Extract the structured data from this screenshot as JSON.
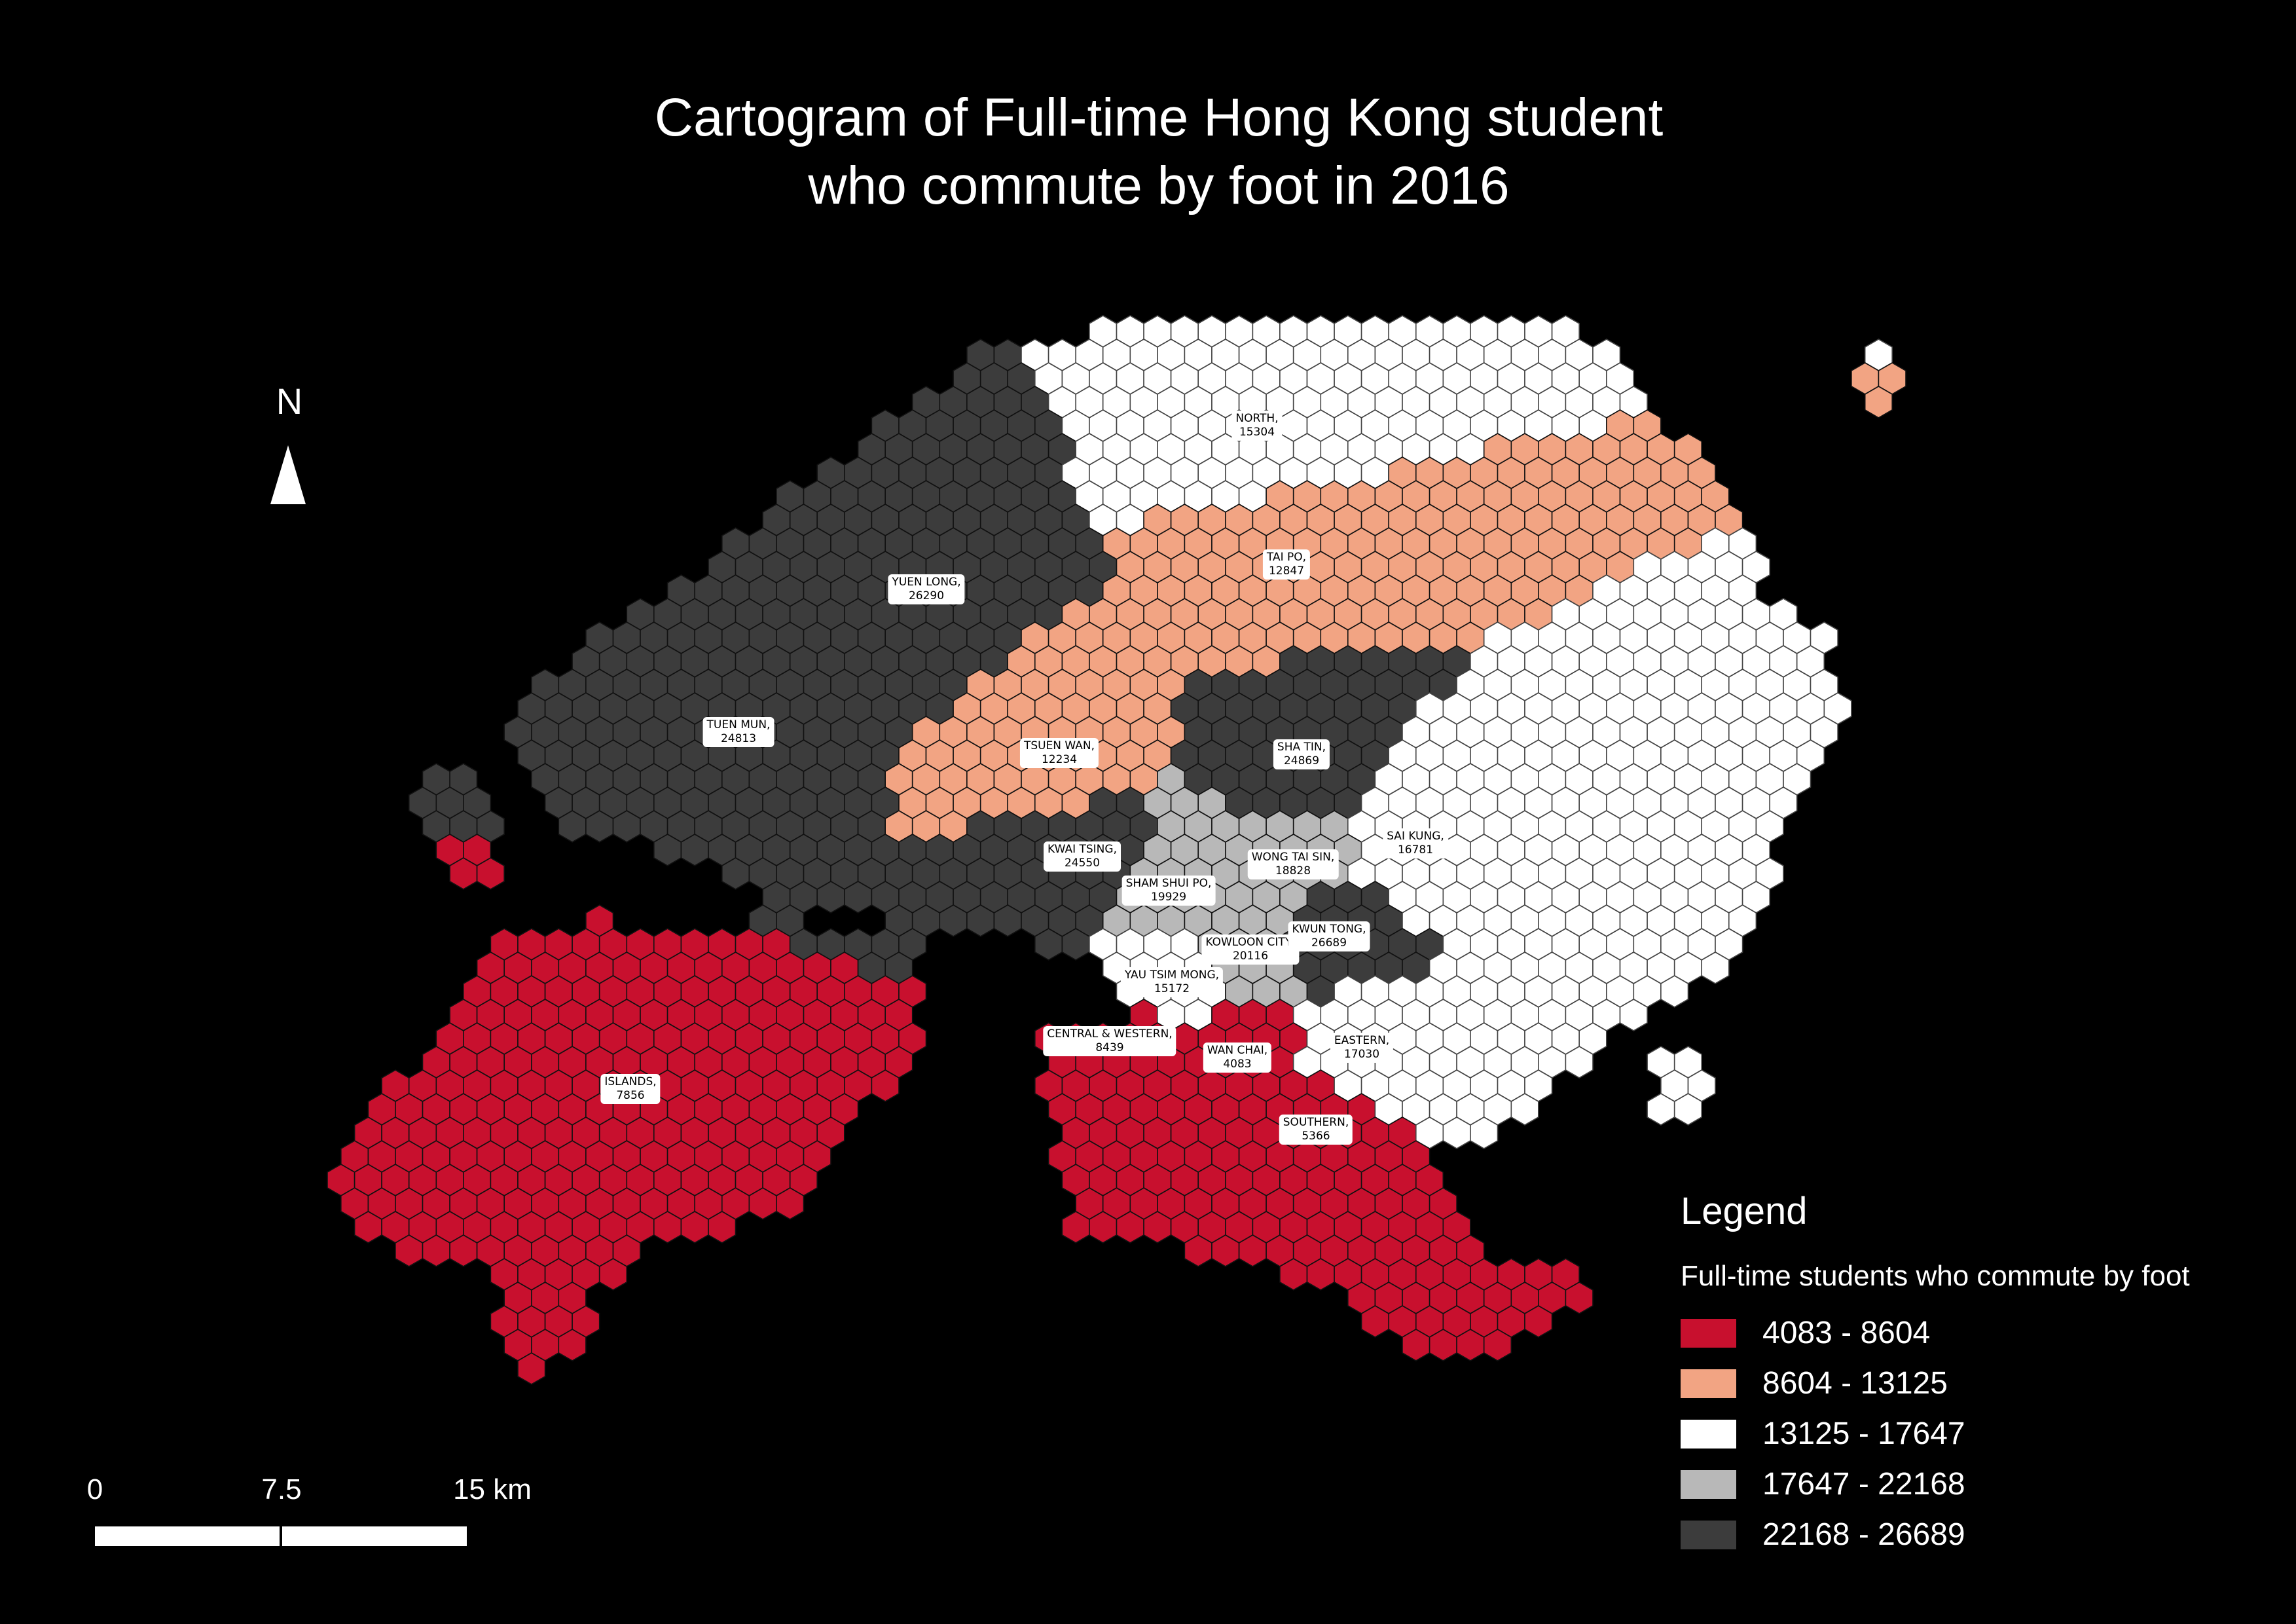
{
  "title": {
    "line1": "Cartogram of Full-time Hong Kong student",
    "line2": "who commute by foot in 2016"
  },
  "north_arrow": {
    "label": "N",
    "icon": "north-arrow-icon"
  },
  "scale_bar": {
    "ticks": [
      "0",
      "7.5",
      "15 km"
    ]
  },
  "legend": {
    "heading": "Legend",
    "subtitle": "Full-time students who commute by foot",
    "classes": [
      {
        "label": "4083 - 8604",
        "color": "#c8102e"
      },
      {
        "label": "8604 - 13125",
        "color": "#f2a483"
      },
      {
        "label": "13125 - 17647",
        "color": "#ffffff"
      },
      {
        "label": "17647 - 22168",
        "color": "#b8b8b8"
      },
      {
        "label": "22168 - 26689",
        "color": "#3c3c3c"
      }
    ]
  },
  "districts": [
    {
      "name": "NORTH",
      "value": "15304",
      "class": 2
    },
    {
      "name": "TAI PO",
      "value": "12847",
      "class": 1
    },
    {
      "name": "YUEN LONG",
      "value": "26290",
      "class": 4
    },
    {
      "name": "TUEN MUN",
      "value": "24813",
      "class": 4
    },
    {
      "name": "TSUEN WAN",
      "value": "12234",
      "class": 1
    },
    {
      "name": "SHA TIN",
      "value": "24869",
      "class": 4
    },
    {
      "name": "KWAI TSING",
      "value": "24550",
      "class": 4
    },
    {
      "name": "SAI KUNG",
      "value": "16781",
      "class": 2
    },
    {
      "name": "WONG TAI SIN",
      "value": "18828",
      "class": 3
    },
    {
      "name": "SHAM SHUI PO",
      "value": "19929",
      "class": 3
    },
    {
      "name": "KOWLOON CITY",
      "value": "20116",
      "class": 3
    },
    {
      "name": "KWUN TONG",
      "value": "26689",
      "class": 4
    },
    {
      "name": "YAU TSIM MONG",
      "value": "15172",
      "class": 2
    },
    {
      "name": "CENTRAL & WESTERN",
      "value": "8439",
      "class": 0
    },
    {
      "name": "WAN CHAI",
      "value": "4083",
      "class": 0
    },
    {
      "name": "EASTERN",
      "value": "17030",
      "class": 2
    },
    {
      "name": "ISLANDS",
      "value": "7856",
      "class": 0
    },
    {
      "name": "SOUTHERN",
      "value": "5366",
      "class": 0
    }
  ]
}
